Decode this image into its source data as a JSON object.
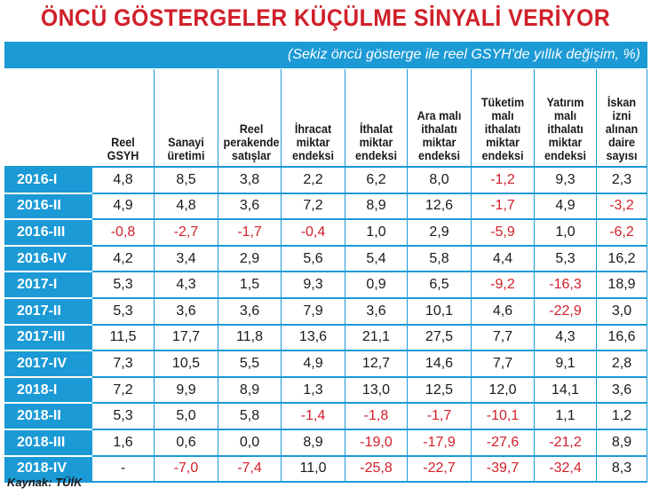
{
  "title": "ÖNCÜ GÖSTERGELER KÜÇÜLME SİNYALİ VERİYOR",
  "subtitle": "(Sekiz öncü gösterge ile reel GSYH'de yıllık değişim, %)",
  "source": "Kaynak: TÜİK",
  "colors": {
    "accent": "#1b9ad6",
    "title": "#d0202a",
    "negative": "#d0202a"
  },
  "chart_data": {
    "type": "table",
    "title": "ÖNCÜ GÖSTERGELER KÜÇÜLME SİNYALİ VERİYOR",
    "subtitle": "(Sekiz öncü gösterge ile reel GSYH'de yıllık değişim, %)",
    "columns": [
      "Reel GSYH",
      "Sanayi üretimi",
      "Reel perakende satışlar",
      "İhracat miktar endeksi",
      "İthalat miktar endeksi",
      "Ara malı ithalatı miktar endeksi",
      "Tüketim malı ithalatı miktar endeksi",
      "Yatırım malı ithalatı miktar endeksi",
      "İskan izni alınan daire sayısı"
    ],
    "rows": [
      {
        "period": "2016-I",
        "values": [
          "4,8",
          "8,5",
          "3,8",
          "2,2",
          "6,2",
          "8,0",
          "-1,2",
          "9,3",
          "2,3"
        ]
      },
      {
        "period": "2016-II",
        "values": [
          "4,9",
          "4,8",
          "3,6",
          "7,2",
          "8,9",
          "12,6",
          "-1,7",
          "4,9",
          "-3,2"
        ]
      },
      {
        "period": "2016-III",
        "values": [
          "-0,8",
          "-2,7",
          "-1,7",
          "-0,4",
          "1,0",
          "2,9",
          "-5,9",
          "1,0",
          "-6,2"
        ]
      },
      {
        "period": "2016-IV",
        "values": [
          "4,2",
          "3,4",
          "2,9",
          "5,6",
          "5,4",
          "5,8",
          "4,4",
          "5,3",
          "16,2"
        ]
      },
      {
        "period": "2017-I",
        "values": [
          "5,3",
          "4,3",
          "1,5",
          "9,3",
          "0,9",
          "6,5",
          "-9,2",
          "-16,3",
          "18,9"
        ]
      },
      {
        "period": "2017-II",
        "values": [
          "5,3",
          "3,6",
          "3,6",
          "7,9",
          "3,6",
          "10,1",
          "4,6",
          "-22,9",
          "3,0"
        ]
      },
      {
        "period": "2017-III",
        "values": [
          "11,5",
          "17,7",
          "11,8",
          "13,6",
          "21,1",
          "27,5",
          "7,7",
          "4,3",
          "16,6"
        ]
      },
      {
        "period": "2017-IV",
        "values": [
          "7,3",
          "10,5",
          "5,5",
          "4,9",
          "12,7",
          "14,6",
          "7,7",
          "9,1",
          "2,8"
        ]
      },
      {
        "period": "2018-I",
        "values": [
          "7,2",
          "9,9",
          "8,9",
          "1,3",
          "13,0",
          "12,5",
          "12,0",
          "14,1",
          "3,6"
        ]
      },
      {
        "period": "2018-II",
        "values": [
          "5,3",
          "5,0",
          "5,8",
          "-1,4",
          "-1,8",
          "-1,7",
          "-10,1",
          "1,1",
          "1,2"
        ]
      },
      {
        "period": "2018-III",
        "values": [
          "1,6",
          "0,6",
          "0,0",
          "8,9",
          "-19,0",
          "-17,9",
          "-27,6",
          "-21,2",
          "8,9"
        ]
      },
      {
        "period": "2018-IV",
        "values": [
          "-",
          "-7,0",
          "-7,4",
          "11,0",
          "-25,8",
          "-22,7",
          "-39,7",
          "-32,4",
          "8,3"
        ]
      }
    ]
  }
}
